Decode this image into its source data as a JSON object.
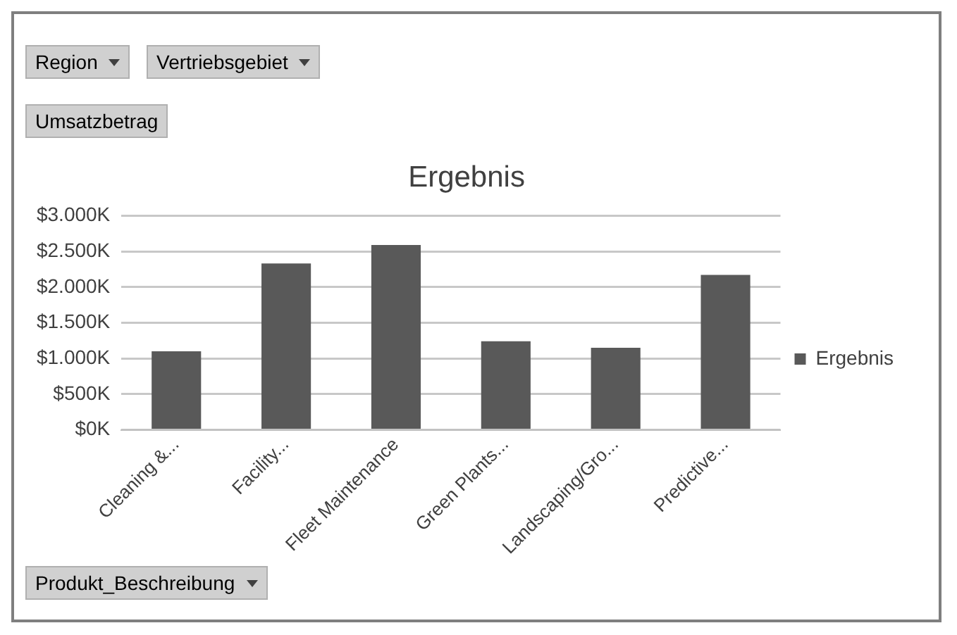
{
  "chart_data": {
    "type": "bar",
    "title": "Ergebnis",
    "categories": [
      "Cleaning &...",
      "Facility...",
      "Fleet Maintenance",
      "Green Plants...",
      "Landscaping/Gro...",
      "Predictive..."
    ],
    "series": [
      {
        "name": "Ergebnis",
        "color": "#595959",
        "values": [
          1100,
          2330,
          2590,
          1240,
          1150,
          2170
        ]
      }
    ],
    "ylim": [
      0,
      3000
    ],
    "yticks": [
      {
        "value": 0,
        "label": "$0K"
      },
      {
        "value": 500,
        "label": "$500K"
      },
      {
        "value": 1000,
        "label": "$1.000K"
      },
      {
        "value": 1500,
        "label": "$1.500K"
      },
      {
        "value": 2000,
        "label": "$2.000K"
      },
      {
        "value": 2500,
        "label": "$2.500K"
      },
      {
        "value": 3000,
        "label": "$3.000K"
      }
    ],
    "grid": "y",
    "legend": "right",
    "annotations": [
      "Region",
      "Vertriebsgebiet",
      "Umsatzbetrag",
      "Produkt_Beschreibung"
    ]
  }
}
